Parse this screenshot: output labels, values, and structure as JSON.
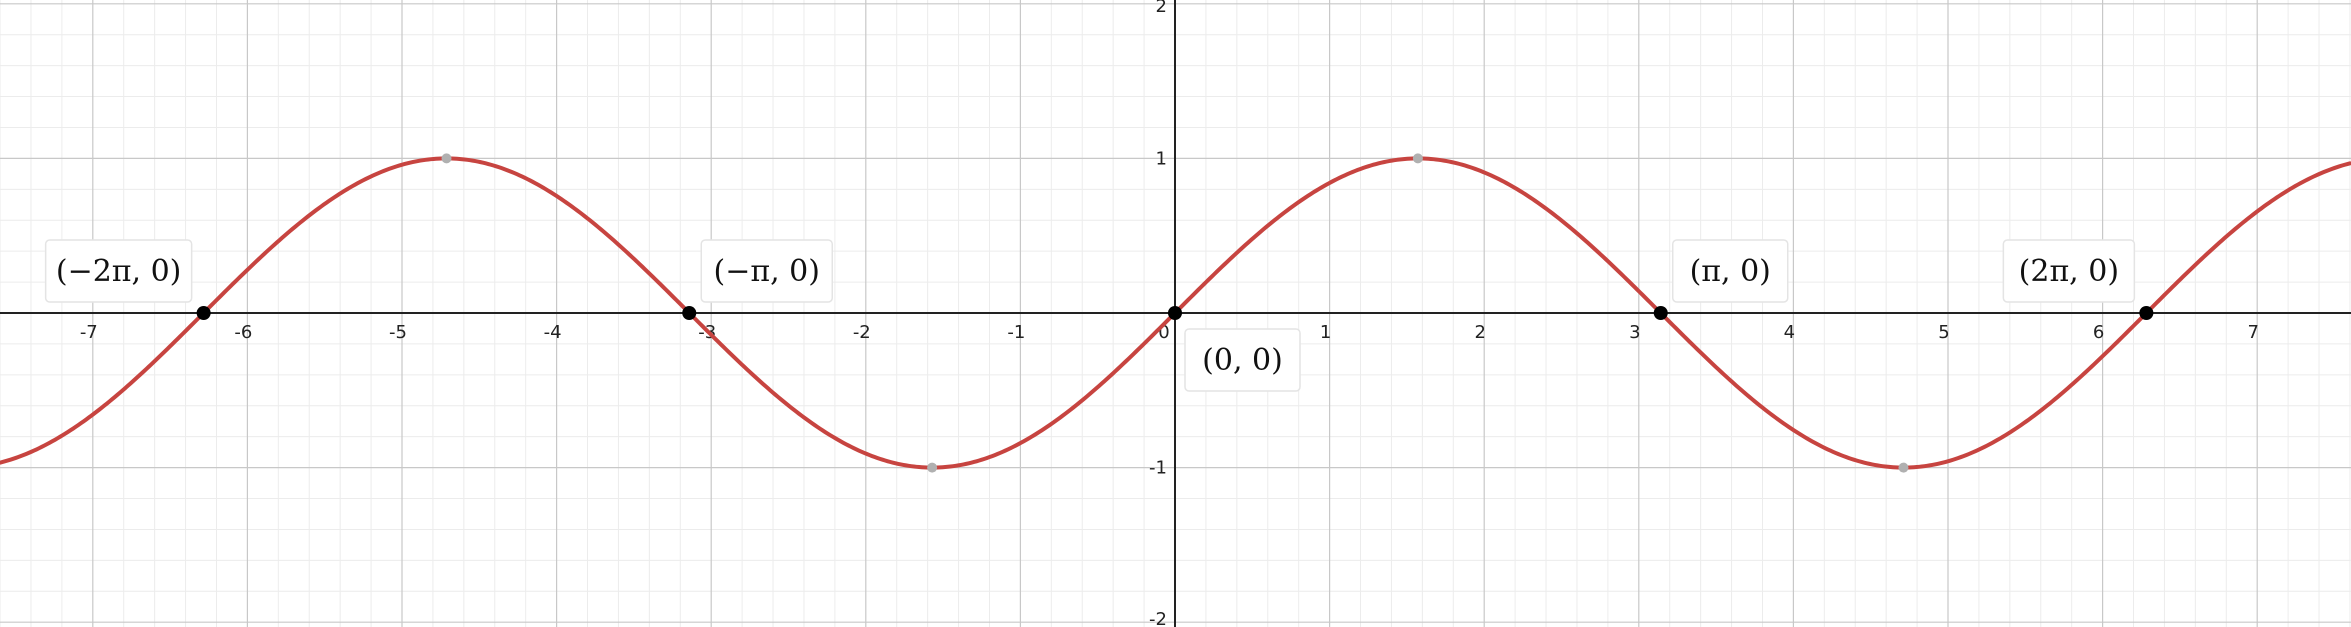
{
  "chart_data": {
    "type": "line",
    "function": "sin(x)",
    "title": "",
    "xlabel": "",
    "ylabel": "",
    "xlim": [
      -7.6,
      7.6
    ],
    "ylim": [
      -2.0,
      2.0
    ],
    "grid": true,
    "x_ticks": [
      {
        "value": -7,
        "label": "-7"
      },
      {
        "value": -6,
        "label": "-6"
      },
      {
        "value": -5,
        "label": "-5"
      },
      {
        "value": -4,
        "label": "-4"
      },
      {
        "value": -3,
        "label": "-3"
      },
      {
        "value": -2,
        "label": "-2"
      },
      {
        "value": -1,
        "label": "-1"
      },
      {
        "value": 0,
        "label": "0"
      },
      {
        "value": 1,
        "label": "1"
      },
      {
        "value": 2,
        "label": "2"
      },
      {
        "value": 3,
        "label": "3"
      },
      {
        "value": 4,
        "label": "4"
      },
      {
        "value": 5,
        "label": "5"
      },
      {
        "value": 6,
        "label": "6"
      },
      {
        "value": 7,
        "label": "7"
      }
    ],
    "y_ticks": [
      {
        "value": 2,
        "label": "2"
      },
      {
        "value": 1,
        "label": "1"
      },
      {
        "value": -1,
        "label": "-1"
      },
      {
        "value": -2,
        "label": "-2"
      }
    ],
    "series": [
      {
        "color": "#c74440"
      }
    ],
    "extrema_points": [
      {
        "x": -4.712,
        "y": 1
      },
      {
        "x": -1.571,
        "y": -1
      },
      {
        "x": 1.571,
        "y": 1
      },
      {
        "x": 4.712,
        "y": -1
      }
    ],
    "labeled_points": [
      {
        "x": -6.283,
        "y": 0,
        "label": "(−2π, 0)",
        "position": "above-left"
      },
      {
        "x": -3.142,
        "y": 0,
        "label": "(−π, 0)",
        "position": "above-right"
      },
      {
        "x": 0,
        "y": 0,
        "label": "(0, 0)",
        "position": "below-right"
      },
      {
        "x": 3.142,
        "y": 0,
        "label": "(π, 0)",
        "position": "above-right"
      },
      {
        "x": 6.283,
        "y": 0,
        "label": "(2π, 0)",
        "position": "above-left"
      }
    ],
    "colors": {
      "curve": "#c74440",
      "point": "#000000",
      "extremum": "#b0b0b0",
      "axis": "#222222",
      "major_grid": "#c8c8c8",
      "minor_grid": "#ececec"
    }
  }
}
